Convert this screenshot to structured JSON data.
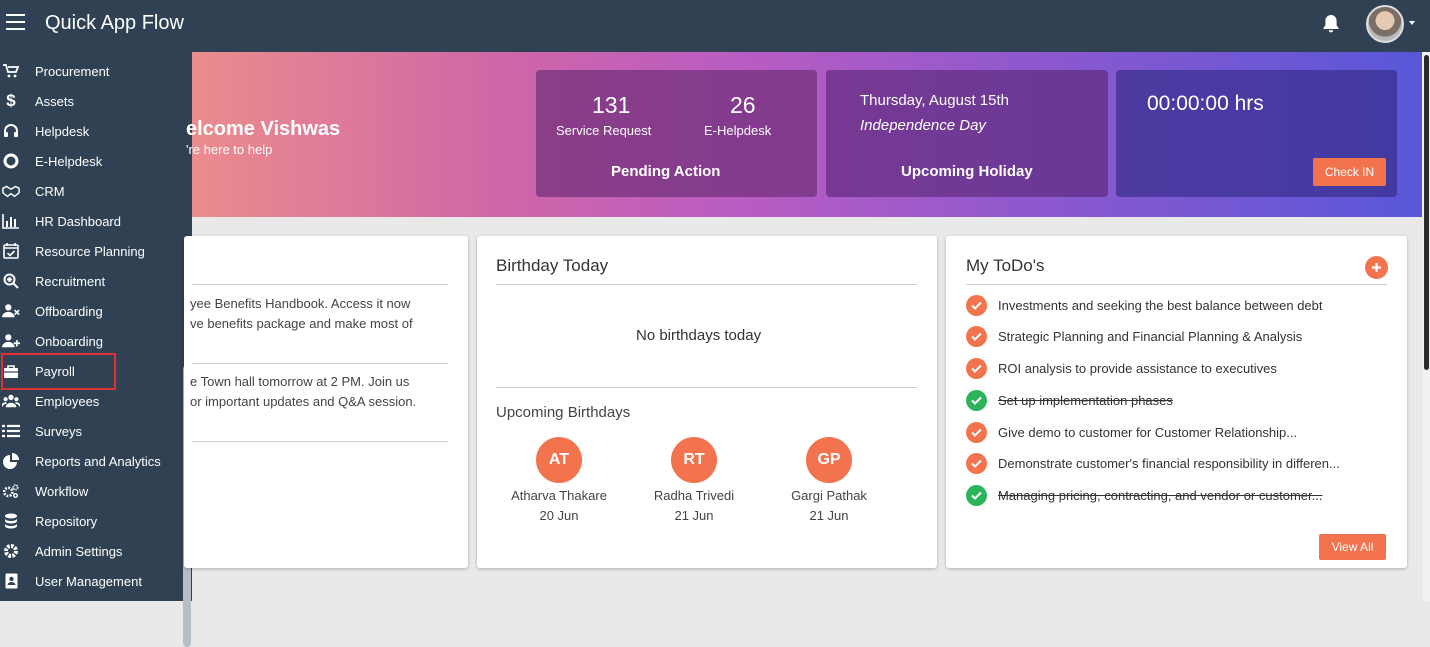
{
  "app": {
    "title": "Quick App Flow"
  },
  "sidebar": {
    "items": [
      {
        "label": "Procurement",
        "icon": "cart-icon"
      },
      {
        "label": "Assets",
        "icon": "dollar-icon"
      },
      {
        "label": "Helpdesk",
        "icon": "headset-icon"
      },
      {
        "label": "E-Helpdesk",
        "icon": "lifebuoy-icon"
      },
      {
        "label": "CRM",
        "icon": "handshake-icon"
      },
      {
        "label": "HR Dashboard",
        "icon": "bar-chart-icon"
      },
      {
        "label": "Resource Planning",
        "icon": "calendar-check-icon"
      },
      {
        "label": "Recruitment",
        "icon": "search-plus-icon"
      },
      {
        "label": "Offboarding",
        "icon": "user-remove-icon"
      },
      {
        "label": "Onboarding",
        "icon": "user-add-icon"
      },
      {
        "label": "Payroll",
        "icon": "briefcase-icon"
      },
      {
        "label": "Employees",
        "icon": "users-icon"
      },
      {
        "label": "Surveys",
        "icon": "list-icon"
      },
      {
        "label": "Reports and Analytics",
        "icon": "pie-chart-icon"
      },
      {
        "label": "Workflow",
        "icon": "cogs-icon"
      },
      {
        "label": "Repository",
        "icon": "database-icon"
      },
      {
        "label": "Admin Settings",
        "icon": "gear-icon"
      },
      {
        "label": "User Management",
        "icon": "id-badge-icon"
      }
    ],
    "highlighted": "Payroll"
  },
  "banner": {
    "welcome": "elcome Vishwas",
    "subtitle": "'re here to help",
    "pending": {
      "service_request_count": "131",
      "service_request_label": "Service Request",
      "ehelpdesk_count": "26",
      "ehelpdesk_label": "E-Helpdesk",
      "footer": "Pending Action"
    },
    "holiday": {
      "date": "Thursday, August 15th",
      "name": "Independence Day",
      "footer": "Upcoming Holiday"
    },
    "attendance": {
      "time": "00:00:00 hrs",
      "button": "Check IN"
    }
  },
  "news": {
    "items": [
      {
        "line1": "yee Benefits Handbook. Access it now",
        "line2": "ve benefits package and make most of"
      },
      {
        "line1": "e Town hall tomorrow at 2 PM. Join us",
        "line2": "or important updates and Q&A session."
      }
    ]
  },
  "birthday": {
    "title": "Birthday Today",
    "empty": "No birthdays today",
    "upcoming_title": "Upcoming Birthdays",
    "upcoming": [
      {
        "initials": "AT",
        "name": "Atharva Thakare",
        "date": "20 Jun"
      },
      {
        "initials": "RT",
        "name": "Radha Trivedi",
        "date": "21 Jun"
      },
      {
        "initials": "GP",
        "name": "Gargi Pathak",
        "date": "21 Jun"
      }
    ]
  },
  "todos": {
    "title": "My ToDo's",
    "view_all": "View All",
    "items": [
      {
        "text": "Investments and seeking the best balance between debt",
        "done": false
      },
      {
        "text": "Strategic Planning and Financial Planning & Analysis",
        "done": false
      },
      {
        "text": "ROI analysis to provide assistance to executives",
        "done": false
      },
      {
        "text": "Set up implementation phases",
        "done": true
      },
      {
        "text": "Give demo to customer for Customer Relationship...",
        "done": false
      },
      {
        "text": "Demonstrate customer's financial responsibility in differen...",
        "done": false
      },
      {
        "text": "Managing pricing, contracting, and vendor or customer...",
        "done": true
      }
    ]
  },
  "colors": {
    "sidebar_bg": "#2f4153",
    "accent": "#f2734d",
    "done_green": "#2cb35b",
    "highlight_red": "#e0302f"
  }
}
